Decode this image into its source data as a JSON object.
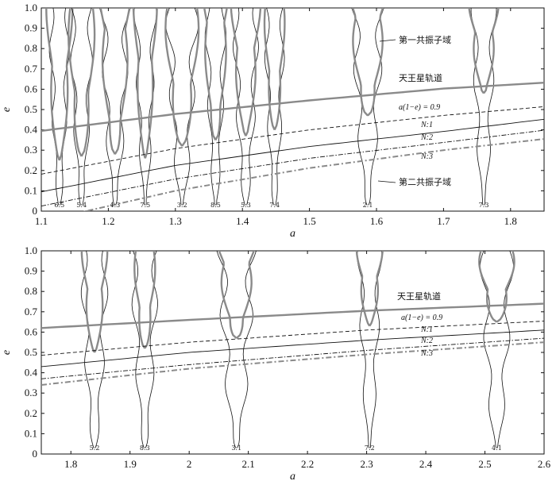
{
  "chart_data": [
    {
      "type": "line",
      "xlabel": "a",
      "ylabel": "e",
      "xlim": [
        1.1,
        1.85
      ],
      "ylim": [
        0,
        1.0
      ],
      "x_ticks": [
        1.1,
        1.2,
        1.3,
        1.4,
        1.5,
        1.6,
        1.7,
        1.8
      ],
      "x_tick_labels": [
        "1.1",
        "1.2",
        "1.3",
        "1.4",
        "1.5",
        "1.6",
        "1.7",
        "1.8"
      ],
      "y_ticks": [
        0,
        0.1,
        0.2,
        0.3,
        0.4,
        0.5,
        0.6,
        0.7,
        0.8,
        0.9,
        1.0
      ],
      "y_tick_labels": [
        "0",
        "0.1",
        "0.2",
        "0.3",
        "0.4",
        "0.5",
        "0.6",
        "0.7",
        "0.8",
        "0.9",
        "1.0"
      ],
      "resonances": [
        {
          "label": "6:5",
          "a": 1.127,
          "w2": 0.008,
          "w1": 0.018,
          "c1": 0.25
        },
        {
          "label": "5:4",
          "a": 1.16,
          "w2": 0.009,
          "w1": 0.02,
          "c1": 0.27
        },
        {
          "label": "4:3",
          "a": 1.21,
          "w2": 0.011,
          "w1": 0.022,
          "c1": 0.28
        },
        {
          "label": "7:5",
          "a": 1.255,
          "w2": 0.008,
          "w1": 0.016,
          "c1": 0.26
        },
        {
          "label": "3:2",
          "a": 1.31,
          "w2": 0.012,
          "w1": 0.025,
          "c1": 0.32
        },
        {
          "label": "8:5",
          "a": 1.36,
          "w2": 0.008,
          "w1": 0.018,
          "c1": 0.35
        },
        {
          "label": "5:3",
          "a": 1.405,
          "w2": 0.01,
          "w1": 0.02,
          "c1": 0.37
        },
        {
          "label": "7:4",
          "a": 1.448,
          "w2": 0.008,
          "w1": 0.015,
          "c1": 0.4
        },
        {
          "label": "2:1",
          "a": 1.587,
          "w2": 0.012,
          "w1": 0.025,
          "c1": 0.47
        },
        {
          "label": "7:3",
          "a": 1.76,
          "w2": 0.009,
          "w1": 0.02,
          "c1": 0.58
        }
      ],
      "curves": [
        {
          "name": "天王星轨道",
          "x": [
            1.1,
            1.3,
            1.5,
            1.7,
            1.85
          ],
          "y": [
            0.395,
            0.478,
            0.545,
            0.603,
            0.632
          ]
        },
        {
          "name": "a(1−e) = 0.9",
          "x": [
            1.1,
            1.3,
            1.5,
            1.7,
            1.85
          ],
          "y": [
            0.182,
            0.308,
            0.4,
            0.471,
            0.514
          ]
        },
        {
          "name": "N:1",
          "x": [
            1.1,
            1.3,
            1.5,
            1.7,
            1.85
          ],
          "y": [
            0.095,
            0.225,
            0.318,
            0.392,
            0.452
          ]
        },
        {
          "name": "N:2",
          "x": [
            1.1,
            1.3,
            1.5,
            1.7,
            1.85
          ],
          "y": [
            0.025,
            0.158,
            0.26,
            0.338,
            0.398
          ]
        },
        {
          "name": "N:3",
          "x": [
            1.1,
            1.3,
            1.5,
            1.7,
            1.85
          ],
          "y": [
            -0.05,
            0.1,
            0.212,
            0.3,
            0.355
          ]
        }
      ],
      "annotations": {
        "first_resonance": "第一共振子域",
        "second_resonance": "第二共振子域",
        "uranus_orbit": "天王星轨道",
        "a_eq": "a(1−e) = 0.9",
        "n1": "N:1",
        "n2": "N:2",
        "n3": "N:3"
      }
    },
    {
      "type": "line",
      "xlabel": "a",
      "ylabel": "e",
      "xlim": [
        1.75,
        2.6
      ],
      "ylim": [
        0,
        1.0
      ],
      "x_ticks": [
        1.8,
        1.9,
        2.0,
        2.1,
        2.2,
        2.3,
        2.4,
        2.5,
        2.6
      ],
      "x_tick_labels": [
        "1.8",
        "1.9",
        "2",
        "2.1",
        "2.2",
        "2.3",
        "2.4",
        "2.5",
        "2.6"
      ],
      "y_ticks": [
        0,
        0.1,
        0.2,
        0.3,
        0.4,
        0.5,
        0.6,
        0.7,
        0.8,
        0.9,
        1.0
      ],
      "y_tick_labels": [
        "0",
        "0.1",
        "0.2",
        "0.3",
        "0.4",
        "0.5",
        "0.6",
        "0.7",
        "0.8",
        "0.9",
        "1.0"
      ],
      "resonances": [
        {
          "label": "5:2",
          "a": 1.84,
          "w2": 0.012,
          "w1": 0.02,
          "c1": 0.5
        },
        {
          "label": "8:3",
          "a": 1.925,
          "w2": 0.012,
          "w1": 0.018,
          "c1": 0.52
        },
        {
          "label": "3:1",
          "a": 2.08,
          "w2": 0.016,
          "w1": 0.03,
          "c1": 0.57
        },
        {
          "label": "7:2",
          "a": 2.305,
          "w2": 0.01,
          "w1": 0.02,
          "c1": 0.63
        },
        {
          "label": "4:1",
          "a": 2.52,
          "w2": 0.014,
          "w1": 0.03,
          "c1": 0.65
        }
      ],
      "curves": [
        {
          "name": "天王星轨道",
          "x": [
            1.75,
            2.0,
            2.3,
            2.6
          ],
          "y": [
            0.62,
            0.66,
            0.705,
            0.74
          ]
        },
        {
          "name": "a(1−e) = 0.9",
          "x": [
            1.75,
            2.0,
            2.3,
            2.6
          ],
          "y": [
            0.486,
            0.55,
            0.61,
            0.654
          ]
        },
        {
          "name": "N:1",
          "x": [
            1.75,
            2.0,
            2.3,
            2.6
          ],
          "y": [
            0.43,
            0.5,
            0.56,
            0.61
          ]
        },
        {
          "name": "N:2",
          "x": [
            1.75,
            2.0,
            2.3,
            2.6
          ],
          "y": [
            0.37,
            0.44,
            0.51,
            0.57
          ]
        },
        {
          "name": "N:3",
          "x": [
            1.75,
            2.0,
            2.3,
            2.6
          ],
          "y": [
            0.34,
            0.42,
            0.49,
            0.55
          ]
        }
      ],
      "annotations": {
        "uranus_orbit": "天王星轨道",
        "a_eq": "a(1−e) = 0.9",
        "n1": "N:1",
        "n2": "N:2",
        "n3": "N:3"
      }
    }
  ]
}
